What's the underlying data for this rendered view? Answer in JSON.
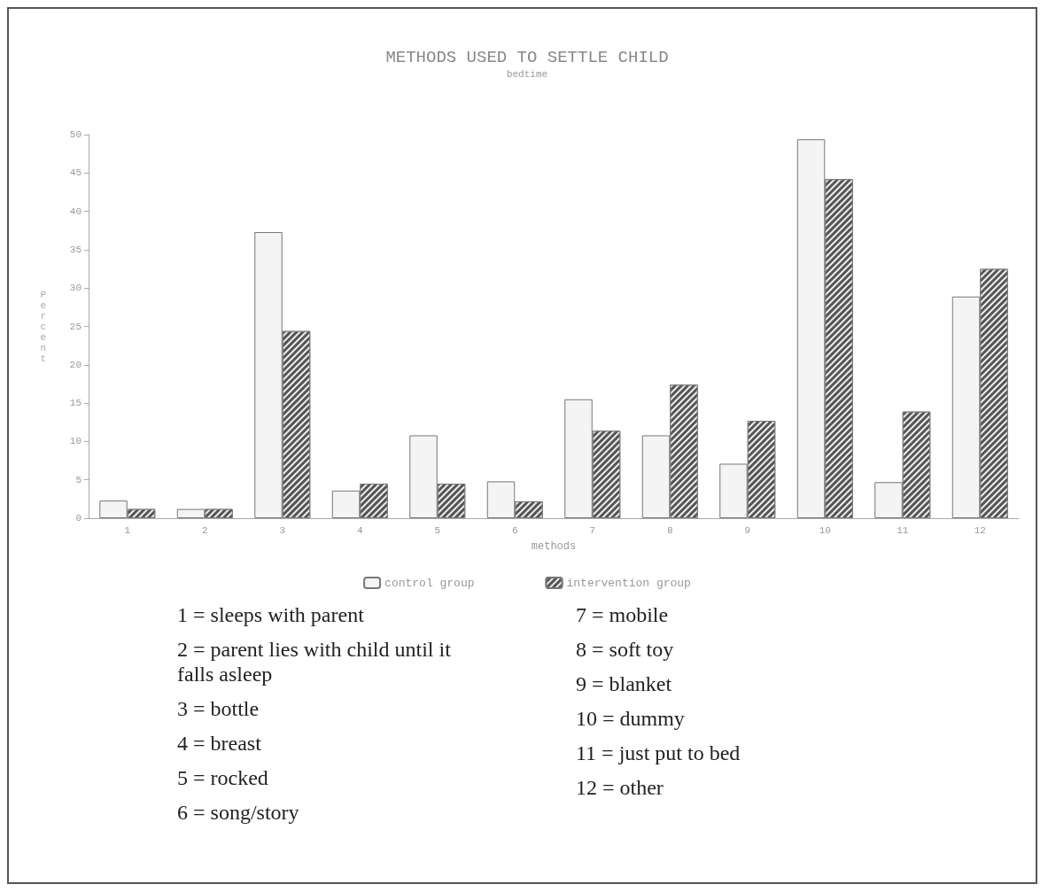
{
  "chart_data": {
    "type": "bar",
    "title": "METHODS USED TO SETTLE CHILD",
    "subtitle": "bedtime",
    "xlabel": "methods",
    "ylabel": "Percent",
    "categories": [
      "1",
      "2",
      "3",
      "4",
      "5",
      "6",
      "7",
      "8",
      "9",
      "10",
      "11",
      "12"
    ],
    "series": [
      {
        "name": "control group",
        "color": "#f4f4f4",
        "values": [
          2.3,
          1.2,
          37.3,
          3.6,
          10.8,
          4.8,
          15.5,
          10.8,
          7.1,
          49.4,
          4.7,
          28.9
        ]
      },
      {
        "name": "intervention group",
        "color": "#555555",
        "values": [
          1.2,
          1.2,
          24.4,
          4.5,
          4.5,
          2.2,
          11.4,
          17.4,
          12.7,
          44.2,
          13.9,
          32.5
        ]
      }
    ],
    "ylim": [
      0,
      50
    ],
    "yticks": [
      0,
      5,
      10,
      15,
      20,
      25,
      30,
      35,
      40,
      45,
      50
    ],
    "grid": false,
    "legend": "bottom",
    "annotations": [
      "1 = sleeps with parent",
      "2 = parent lies with child until it falls asleep",
      "3 = bottle",
      "4 = breast",
      "5 = rocked",
      "6 = song/story",
      "7 = mobile",
      "8 = soft toy",
      "9 = blanket",
      "10 = dummy",
      "11 = just put to bed",
      "12 = other"
    ]
  }
}
